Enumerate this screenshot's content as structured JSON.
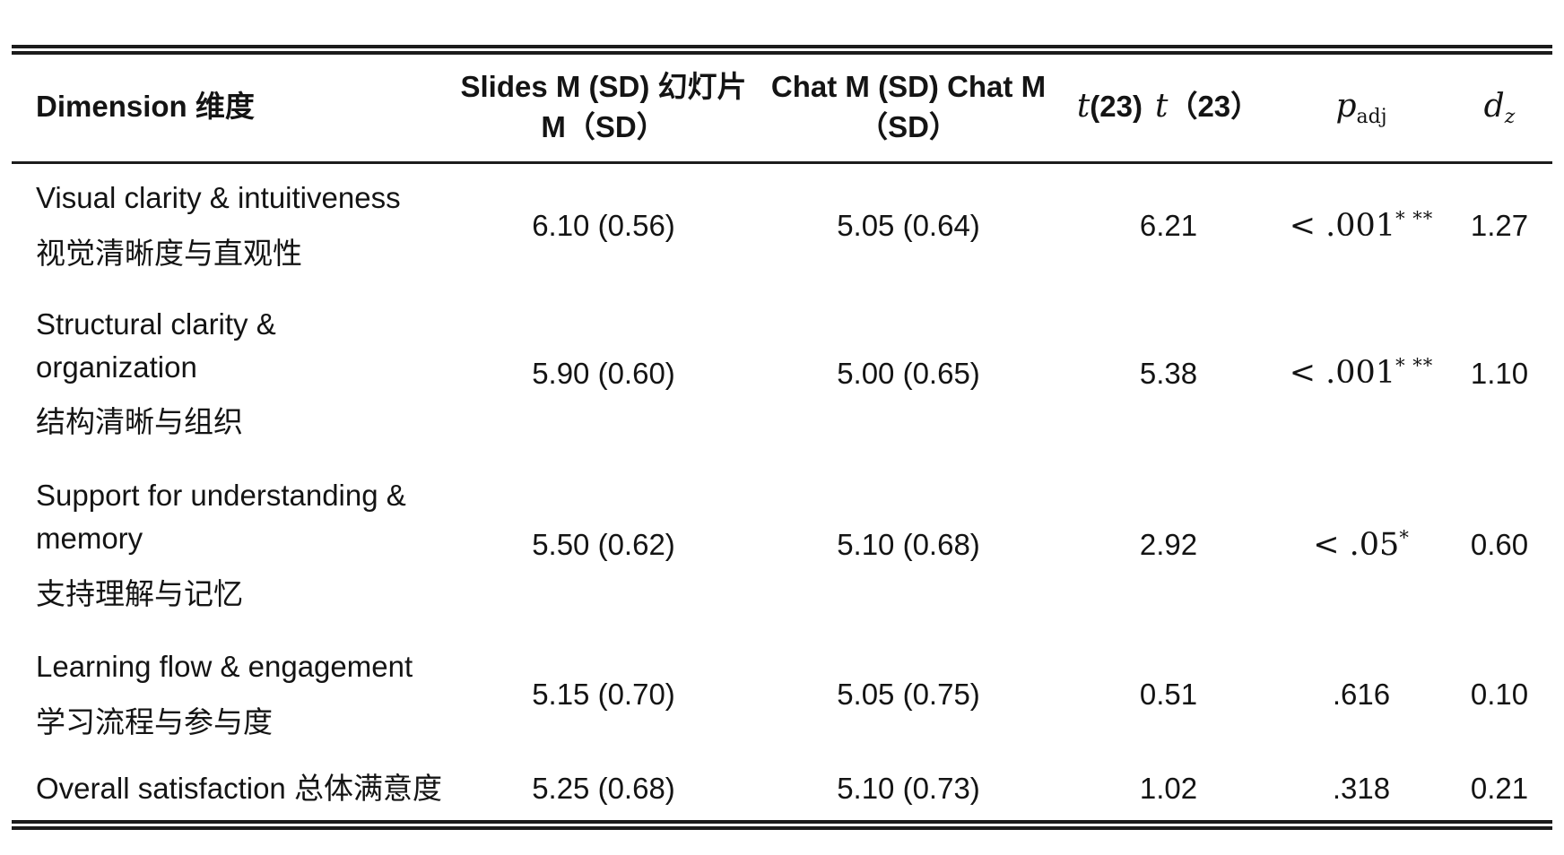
{
  "table": {
    "header": {
      "dimension": "Dimension 维度",
      "slides_line1": "Slides M (SD) 幻灯片",
      "slides_line2": "M（SD）",
      "chat_line1": "Chat M (SD) Chat M",
      "chat_line2": "（SD）",
      "t_italic1": "t",
      "t_paren1": "(23)",
      "t_italic2": "t",
      "t_paren2": "（23）",
      "p_symbol": "p",
      "p_sub": "adj",
      "d_symbol": "d",
      "d_sub": "z"
    },
    "rows": [
      {
        "en": "Visual clarity & intuitiveness",
        "zh": "视觉清晰度与直观性",
        "slides": "6.10 (0.56)",
        "chat": "5.05 (0.64)",
        "t": "6.21",
        "p": "< .001",
        "p_sup": "* **",
        "dz": "1.27"
      },
      {
        "en": "Structural clarity & organization",
        "zh": "结构清晰与组织",
        "slides": "5.90 (0.60)",
        "chat": "5.00 (0.65)",
        "t": "5.38",
        "p": "< .001",
        "p_sup": "* **",
        "dz": "1.10"
      },
      {
        "en": "Support for understanding & memory",
        "zh": "支持理解与记忆",
        "slides": "5.50 (0.62)",
        "chat": "5.10 (0.68)",
        "t": "2.92",
        "p": "< .05",
        "p_sup": "*",
        "dz": "0.60"
      },
      {
        "en": "Learning flow & engagement",
        "zh": "学习流程与参与度",
        "slides": "5.15 (0.70)",
        "chat": "5.05 (0.75)",
        "t": "0.51",
        "p": ".616",
        "p_sup": "",
        "dz": "0.10"
      },
      {
        "en": "Overall satisfaction 总体满意度",
        "zh": "",
        "slides": "5.25 (0.68)",
        "chat": "5.10 (0.73)",
        "t": "1.02",
        "p": ".318",
        "p_sup": "",
        "dz": "0.21"
      }
    ]
  }
}
